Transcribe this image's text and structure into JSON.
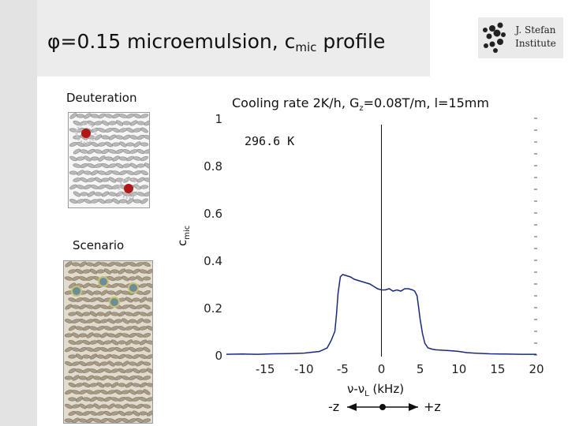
{
  "slide": {
    "title_main": "φ=0.15 microemulsion, c",
    "title_sub": "mic",
    "title_end": " profile",
    "logo_line1": "J. Stefan",
    "logo_line2": "Institute",
    "deuteration_label": "Deuteration",
    "scenario_label": "Scenario",
    "z_minus_label": "-z",
    "z_plus_label": "+z"
  },
  "colors": {
    "curve": "#1a2a7a",
    "header_band": "#ececec",
    "left_band": "#e3e3e3"
  },
  "chart_data": {
    "type": "line",
    "title_prefix": "Cooling rate 2K/h, G",
    "title_sub": "z",
    "title_suffix": "=0.08T/m, l=15mm",
    "annotation": "296.6 K",
    "ylabel_main": "c",
    "ylabel_sub": "mic",
    "xlabel_prefix": "ν-ν",
    "xlabel_sub": "L",
    "xlabel_suffix": " (kHz)",
    "xlim": [
      -20,
      20
    ],
    "ylim": [
      0,
      1
    ],
    "x_ticks": [
      -15,
      -10,
      -5,
      0,
      5,
      10,
      15,
      20
    ],
    "y_ticks": [
      0,
      0.2,
      0.4,
      0.6,
      0.8,
      1
    ],
    "y_tick_labels": [
      "0",
      "0.2",
      "0.4",
      "0.6",
      "0.8",
      "1"
    ],
    "x_tick_labels": [
      "-15",
      "-10",
      "-5",
      "0",
      "5",
      "10",
      "15",
      "20"
    ],
    "vline_x": 0,
    "series": [
      {
        "x": [
          -20,
          -18,
          -16,
          -14,
          -12,
          -10,
          -8,
          -7,
          -6.5,
          -6,
          -5.8,
          -5.6,
          -5.3,
          -5,
          -4.5,
          -4,
          -3.5,
          -3,
          -2.5,
          -2,
          -1.5,
          -1,
          -0.5,
          0,
          0.5,
          1,
          1.5,
          2,
          2.5,
          3,
          3.5,
          4,
          4.3,
          4.6,
          4.8,
          5,
          5.3,
          5.6,
          6,
          6.5,
          7,
          8,
          9,
          10,
          11,
          12,
          14,
          16,
          18,
          20
        ],
        "y": [
          0.003,
          0.004,
          0.003,
          0.005,
          0.006,
          0.008,
          0.015,
          0.03,
          0.06,
          0.1,
          0.17,
          0.26,
          0.33,
          0.34,
          0.335,
          0.33,
          0.32,
          0.315,
          0.31,
          0.305,
          0.3,
          0.29,
          0.28,
          0.275,
          0.275,
          0.28,
          0.27,
          0.275,
          0.27,
          0.28,
          0.28,
          0.275,
          0.27,
          0.25,
          0.2,
          0.15,
          0.09,
          0.05,
          0.03,
          0.025,
          0.022,
          0.02,
          0.018,
          0.015,
          0.01,
          0.008,
          0.005,
          0.004,
          0.003,
          0.003
        ]
      }
    ]
  }
}
